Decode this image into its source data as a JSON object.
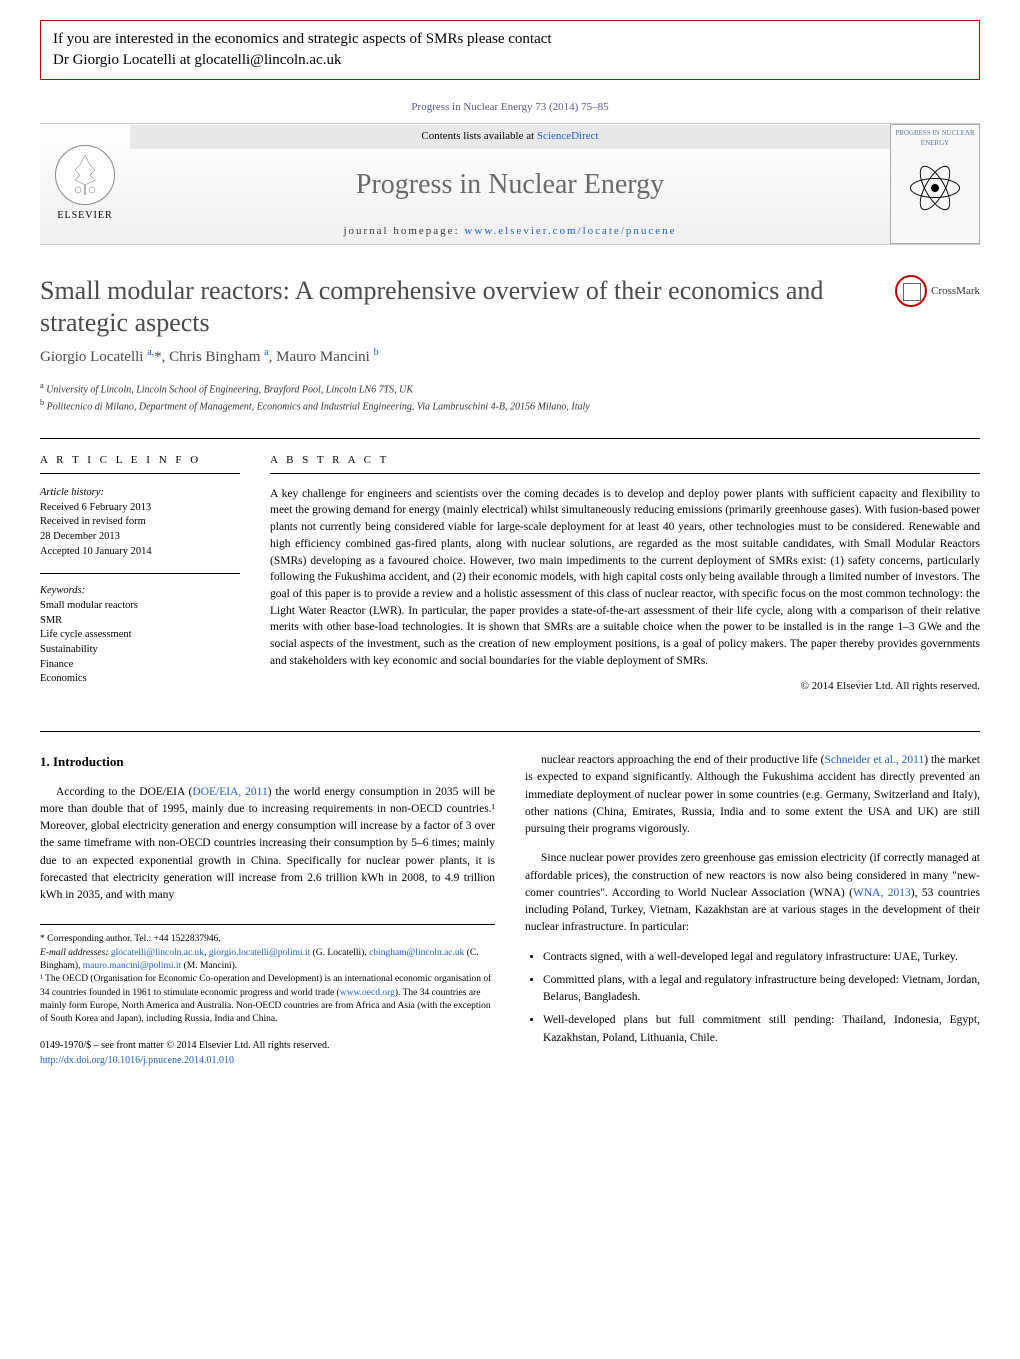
{
  "notice": {
    "line1": "If you are interested in the economics and strategic aspects of SMRs please contact",
    "line2": "Dr Giorgio Locatelli at glocatelli@lincoln.ac.uk"
  },
  "journal_ref": "Progress in Nuclear Energy 73 (2014) 75–85",
  "header": {
    "contents_prefix": "Contents lists available at ",
    "contents_link": "ScienceDirect",
    "journal_name": "Progress in Nuclear Energy",
    "homepage_prefix": "journal homepage: ",
    "homepage_link": "www.elsevier.com/locate/pnucene",
    "elsevier": "ELSEVIER",
    "cover_title": "PROGRESS IN NUCLEAR ENERGY"
  },
  "crossmark_label": "CrossMark",
  "title": "Small modular reactors: A comprehensive overview of their economics and strategic aspects",
  "authors_html": "Giorgio Locatelli <sup>a, *</sup>, Chris Bingham <sup>a</sup>, Mauro Mancini <sup>b</sup>",
  "affiliations": {
    "a": "a University of Lincoln, Lincoln School of Engineering, Brayford Pool, Lincoln LN6 7TS, UK",
    "b": "b Politecnico di Milano, Department of Management, Economics and Industrial Engineering, Via Lambruschini 4-B, 20156 Milano, Italy"
  },
  "article_info": {
    "heading": "A R T I C L E   I N F O",
    "history_label": "Article history:",
    "history": [
      "Received 6 February 2013",
      "Received in revised form",
      "28 December 2013",
      "Accepted 10 January 2014"
    ],
    "keywords_label": "Keywords:",
    "keywords": [
      "Small modular reactors",
      "SMR",
      "Life cycle assessment",
      "Sustainability",
      "Finance",
      "Economics"
    ]
  },
  "abstract": {
    "heading": "A B S T R A C T",
    "text": "A key challenge for engineers and scientists over the coming decades is to develop and deploy power plants with sufficient capacity and flexibility to meet the growing demand for energy (mainly electrical) whilst simultaneously reducing emissions (primarily greenhouse gases). With fusion-based power plants not currently being considered viable for large-scale deployment for at least 40 years, other technologies must to be considered. Renewable and high efficiency combined gas-fired plants, along with nuclear solutions, are regarded as the most suitable candidates, with Small Modular Reactors (SMRs) developing as a favoured choice. However, two main impediments to the current deployment of SMRs exist: (1) safety concerns, particularly following the Fukushima accident, and (2) their economic models, with high capital costs only being available through a limited number of investors. The goal of this paper is to provide a review and a holistic assessment of this class of nuclear reactor, with specific focus on the most common technology: the Light Water Reactor (LWR). In particular, the paper provides a state-of-the-art assessment of their life cycle, along with a comparison of their relative merits with other base-load technologies. It is shown that SMRs are a suitable choice when the power to be installed is in the range 1–3 GWe and the social aspects of the investment, such as the creation of new employment positions, is a goal of policy makers. The paper thereby provides governments and stakeholders with key economic and social boundaries for the viable deployment of SMRs.",
    "copyright": "© 2014 Elsevier Ltd. All rights reserved."
  },
  "intro": {
    "heading": "1. Introduction",
    "para1_pre": "According to the DOE/EIA (",
    "para1_link": "DOE/EIA, 2011",
    "para1_post": ") the world energy consumption in 2035 will be more than double that of 1995, mainly due to increasing requirements in non-OECD countries.¹ Moreover, global electricity generation and energy consumption will increase by a factor of 3 over the same timeframe with non-OECD countries increasing their consumption by 5–6 times; mainly due to an expected exponential growth in China. Specifically for nuclear power plants, it is forecasted that electricity generation will increase from 2.6 trillion kWh in 2008, to 4.9 trillion kWh in 2035, and with many",
    "para2_pre": "nuclear reactors approaching the end of their productive life (",
    "para2_link": "Schneider et al., 2011",
    "para2_post": ") the market is expected to expand significantly. Although the Fukushima accident has directly prevented an immediate deployment of nuclear power in some countries (e.g. Germany, Switzerland and Italy), other nations (China, Emirates, Russia, India and to some extent the USA and UK) are still pursuing their programs vigorously.",
    "para3": "Since nuclear power provides zero greenhouse gas emission electricity (if correctly managed at affordable prices), the construction of new reactors is now also being considered in many \"new-comer countries\". According to World Nuclear Association (WNA) (",
    "para3_link": "WNA, 2013",
    "para3_post": "), 53 countries including Poland, Turkey, Vietnam, Kazakhstan are at various stages in the development of their nuclear infrastructure. In particular:",
    "bullets": [
      "Contracts signed, with a well-developed legal and regulatory infrastructure: UAE, Turkey.",
      "Committed plans, with a legal and regulatory infrastructure being developed: Vietnam, Jordan, Belarus, Bangladesh.",
      "Well-developed plans but full commitment still pending: Thailand, Indonesia, Egypt, Kazakhstan, Poland, Lithuania, Chile."
    ]
  },
  "footnotes": {
    "corresponding": "* Corresponding author. Tel.: +44 1522837946.",
    "email_label": "E-mail addresses:",
    "emails": "glocatelli@lincoln.ac.uk, giorgio.locatelli@polimi.it (G. Locatelli), cbingham@lincoln.ac.uk (C. Bingham), mauro.mancini@polimi.it (M. Mancini).",
    "fn1": "¹ The OECD (Organisation for Economic Co-operation and Development) is an international economic organisation of 34 countries founded in 1961 to stimulate economic progress and world trade (www.oecd.org). The 34 countries are mainly form Europe, North America and Australia. Non-OECD countries are from Africa and Asia (with the exception of South Korea and Japan), including Russia, India and China."
  },
  "footer": {
    "issn": "0149-1970/$ – see front matter © 2014 Elsevier Ltd. All rights reserved.",
    "doi": "http://dx.doi.org/10.1016/j.pnucene.2014.01.010"
  },
  "colors": {
    "notice_border": "#c00000",
    "link": "#2060c0",
    "title_gray": "#4a4a4a",
    "journal_gray": "#6a6a6a"
  }
}
